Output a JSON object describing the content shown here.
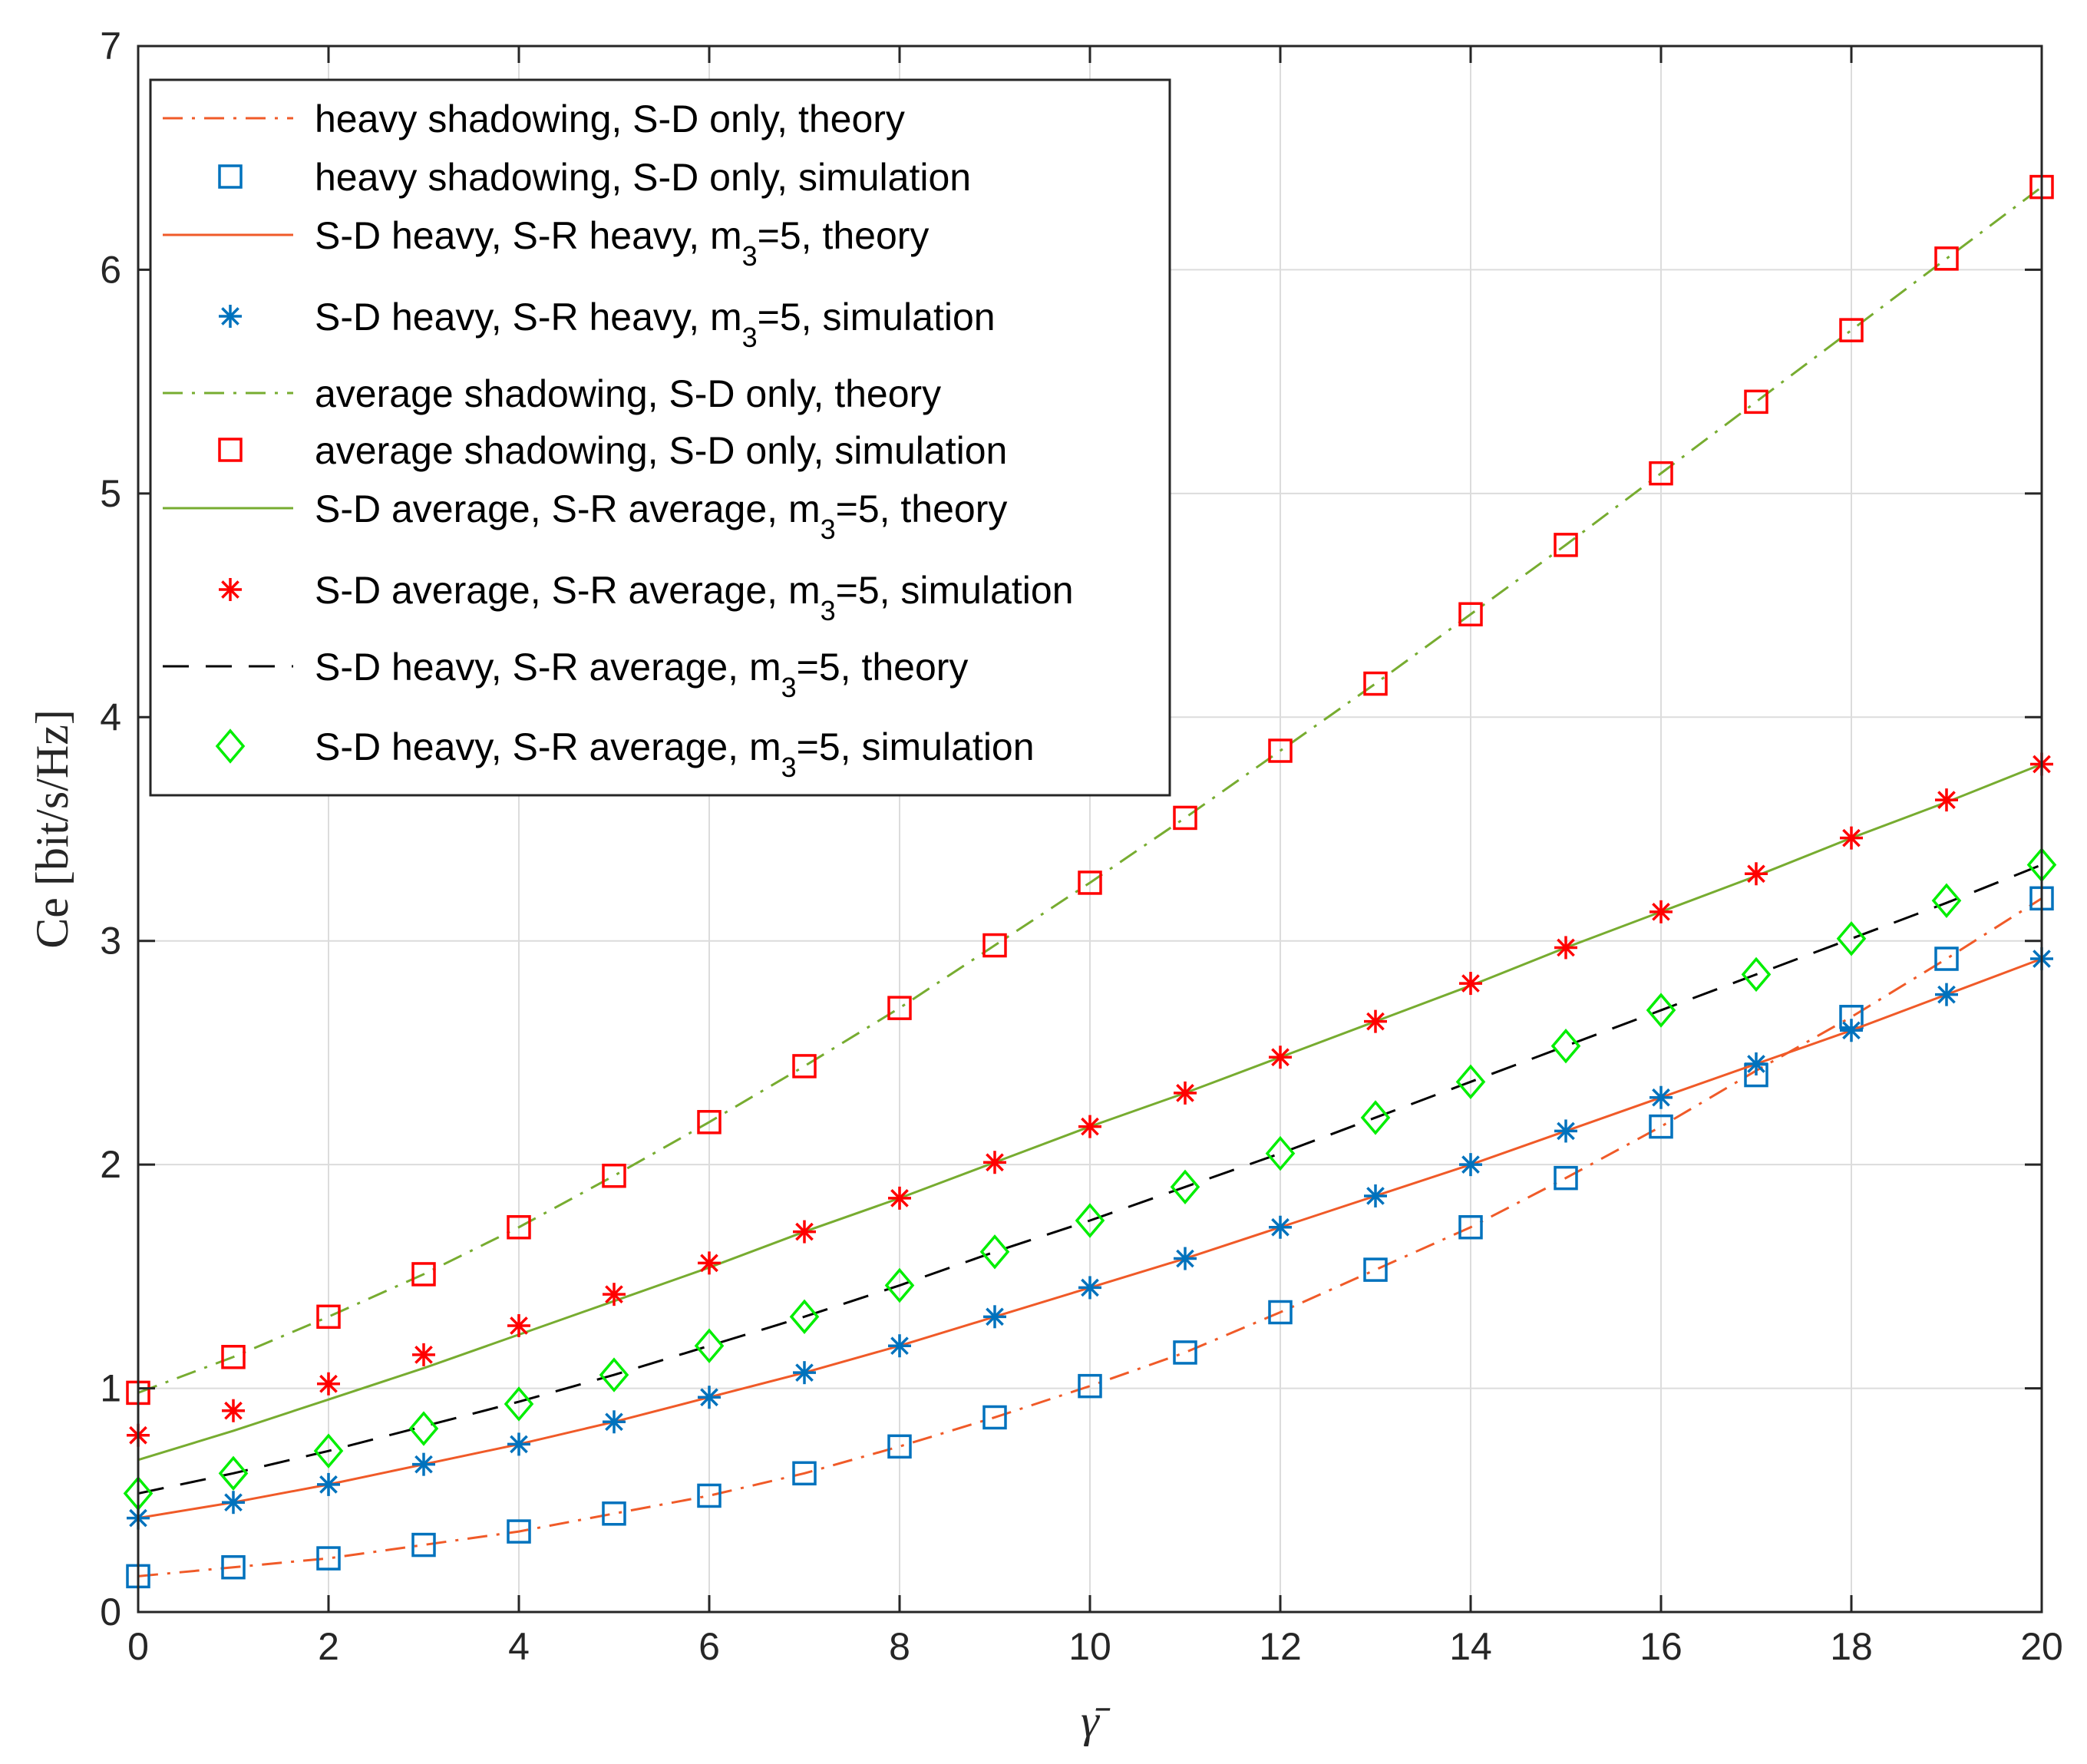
{
  "chart_data": {
    "type": "line",
    "xlabel": "γ̄",
    "ylabel": "Ce [bit/s/Hz]",
    "xlim": [
      0,
      20
    ],
    "ylim": [
      0,
      7
    ],
    "xticks": [
      0,
      2,
      4,
      6,
      8,
      10,
      12,
      14,
      16,
      18,
      20
    ],
    "yticks": [
      0,
      1,
      2,
      3,
      4,
      5,
      6,
      7
    ],
    "grid": true,
    "legend_position": "top-left",
    "x_sim": [
      0,
      1,
      2,
      3,
      4,
      5,
      6,
      7,
      8,
      9,
      10,
      11,
      12,
      13,
      14,
      15,
      16,
      17,
      18,
      19,
      20
    ],
    "series": [
      {
        "name": "heavy shadowing, S-D only, theory",
        "legend_main": "heavy shadowing, S-D only, theory",
        "color": "#f05a28",
        "style": "dashdot",
        "kind": "line",
        "values": [
          0.16,
          0.2,
          0.24,
          0.3,
          0.36,
          0.44,
          0.52,
          0.62,
          0.74,
          0.87,
          1.01,
          1.16,
          1.34,
          1.53,
          1.72,
          1.94,
          2.17,
          2.42,
          2.66,
          2.92,
          3.19
        ]
      },
      {
        "name": "heavy shadowing, S-D only, simulation",
        "legend_main": "heavy shadowing, S-D only, simulation",
        "color": "#0072bd",
        "marker": "square",
        "kind": "marker",
        "values": [
          0.16,
          0.2,
          0.24,
          0.3,
          0.36,
          0.44,
          0.52,
          0.62,
          0.74,
          0.87,
          1.01,
          1.16,
          1.34,
          1.53,
          1.72,
          1.94,
          2.17,
          2.4,
          2.66,
          2.92,
          3.19
        ]
      },
      {
        "name": "S-D heavy, S-R heavy, m3=5, theory",
        "legend_main": "S-D heavy, S-R heavy, m",
        "legend_sub": "3",
        "legend_rest": "=5, theory",
        "color": "#f05a28",
        "style": "solid",
        "kind": "line",
        "values": [
          0.42,
          0.49,
          0.57,
          0.66,
          0.75,
          0.85,
          0.96,
          1.07,
          1.19,
          1.32,
          1.45,
          1.58,
          1.72,
          1.86,
          2.0,
          2.15,
          2.3,
          2.45,
          2.6,
          2.76,
          2.92
        ]
      },
      {
        "name": "S-D heavy, S-R heavy, m3=5, simulation",
        "legend_main": "S-D heavy, S-R heavy, m",
        "legend_sub": "3",
        "legend_rest": "=5, simulation",
        "color": "#0072bd",
        "marker": "asterisk",
        "kind": "marker",
        "values": [
          0.42,
          0.49,
          0.57,
          0.66,
          0.75,
          0.85,
          0.96,
          1.07,
          1.19,
          1.32,
          1.45,
          1.58,
          1.72,
          1.86,
          2.0,
          2.15,
          2.3,
          2.45,
          2.6,
          2.76,
          2.92
        ]
      },
      {
        "name": "average shadowing, S-D only, theory",
        "legend_main": "average shadowing, S-D only, theory",
        "color": "#77ac30",
        "style": "dashdot",
        "kind": "line",
        "values": [
          0.98,
          1.14,
          1.32,
          1.51,
          1.72,
          1.95,
          2.19,
          2.44,
          2.7,
          2.98,
          3.26,
          3.55,
          3.85,
          4.15,
          4.46,
          4.77,
          5.09,
          5.41,
          5.73,
          6.05,
          6.37
        ]
      },
      {
        "name": "average shadowing, S-D only, simulation",
        "legend_main": "average shadowing, S-D only, simulation",
        "color": "#ff0000",
        "marker": "square",
        "kind": "marker",
        "values": [
          0.98,
          1.14,
          1.32,
          1.51,
          1.72,
          1.95,
          2.19,
          2.44,
          2.7,
          2.98,
          3.26,
          3.55,
          3.85,
          4.15,
          4.46,
          4.77,
          5.09,
          5.41,
          5.73,
          6.05,
          6.37
        ]
      },
      {
        "name": "S-D average, S-R average, m3=5, theory",
        "legend_main": "S-D average, S-R average, m",
        "legend_sub": "3",
        "legend_rest": "=5, theory",
        "color": "#77ac30",
        "style": "solid",
        "kind": "line",
        "values": [
          0.68,
          0.81,
          0.95,
          1.09,
          1.24,
          1.39,
          1.54,
          1.7,
          1.85,
          2.01,
          2.17,
          2.32,
          2.48,
          2.64,
          2.8,
          2.97,
          3.13,
          3.29,
          3.46,
          3.62,
          3.79
        ]
      },
      {
        "name": "S-D average, S-R average, m3=5, simulation",
        "legend_main": "S-D average, S-R average, m",
        "legend_sub": "3",
        "legend_rest": "=5, simulation",
        "color": "#ff0000",
        "marker": "asterisk",
        "kind": "marker",
        "values": [
          0.79,
          0.9,
          1.02,
          1.15,
          1.28,
          1.42,
          1.56,
          1.7,
          1.85,
          2.01,
          2.17,
          2.32,
          2.48,
          2.64,
          2.81,
          2.97,
          3.13,
          3.3,
          3.46,
          3.63,
          3.79
        ]
      },
      {
        "name": "S-D heavy, S-R average, m3=5, theory",
        "legend_main": "S-D heavy, S-R average, m",
        "legend_sub": "3",
        "legend_rest": "=5, theory",
        "color": "#000000",
        "style": "dashed",
        "kind": "line",
        "values": [
          0.53,
          0.62,
          0.72,
          0.83,
          0.94,
          1.06,
          1.19,
          1.32,
          1.46,
          1.61,
          1.75,
          1.9,
          2.05,
          2.21,
          2.37,
          2.53,
          2.69,
          2.85,
          3.01,
          3.17,
          3.34
        ]
      },
      {
        "name": "S-D heavy, S-R average, m3=5, simulation",
        "legend_main": "S-D heavy, S-R average, m",
        "legend_sub": "3",
        "legend_rest": "=5, simulation",
        "color": "#00ee00",
        "marker": "diamond",
        "kind": "marker",
        "values": [
          0.53,
          0.62,
          0.72,
          0.82,
          0.93,
          1.06,
          1.19,
          1.32,
          1.46,
          1.61,
          1.75,
          1.9,
          2.05,
          2.21,
          2.37,
          2.53,
          2.69,
          2.85,
          3.01,
          3.18,
          3.34
        ]
      }
    ]
  }
}
